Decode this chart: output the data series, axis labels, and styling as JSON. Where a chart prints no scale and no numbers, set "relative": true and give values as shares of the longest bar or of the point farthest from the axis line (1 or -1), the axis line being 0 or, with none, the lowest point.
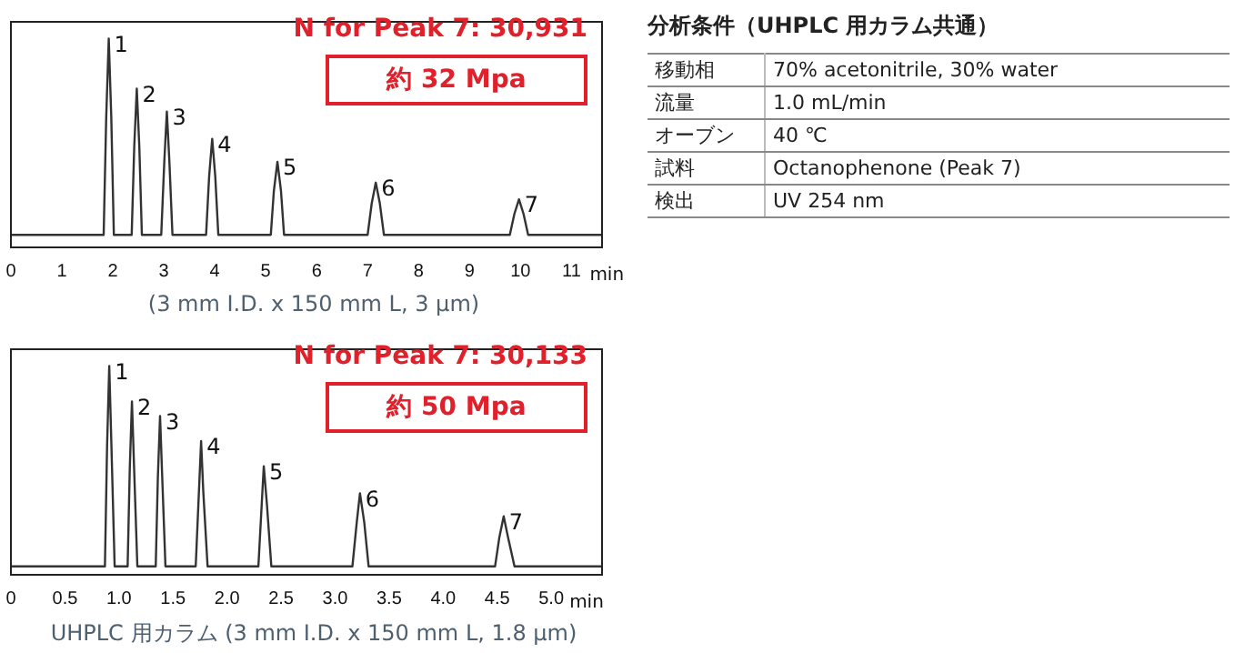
{
  "chart_data": [
    {
      "type": "line",
      "relative": true,
      "xlabel": "min",
      "subtitle": "(3 mm I.D. x 150 mm L, 3 μm)",
      "xlim": [
        0,
        11.6
      ],
      "xticks": [
        0,
        1,
        2,
        3,
        4,
        5,
        6,
        7,
        8,
        9,
        10,
        11
      ],
      "grid": false,
      "legend": false,
      "marker": "none",
      "line_style": "solid",
      "series": [
        {
          "color": "#333333",
          "x": [
            0,
            1.82,
            1.87,
            1.92,
            1.97,
            2.02,
            2.37,
            2.42,
            2.47,
            2.52,
            2.57,
            2.95,
            3.01,
            3.06,
            3.11,
            3.17,
            3.83,
            3.89,
            3.95,
            4.01,
            4.07,
            5.1,
            5.16,
            5.23,
            5.3,
            5.36,
            7.0,
            7.08,
            7.16,
            7.24,
            7.32,
            9.79,
            9.88,
            9.97,
            10.06,
            10.15,
            11.6
          ],
          "values": [
            0.06,
            0.06,
            0.62,
            1,
            0.62,
            0.06,
            0.06,
            0.48,
            0.76,
            0.48,
            0.06,
            0.06,
            0.41,
            0.65,
            0.41,
            0.06,
            0.06,
            0.34,
            0.52,
            0.34,
            0.06,
            0.06,
            0.27,
            0.41,
            0.27,
            0.06,
            0.06,
            0.21,
            0.31,
            0.21,
            0.06,
            0.06,
            0.16,
            0.23,
            0.16,
            0.06,
            0.06
          ]
        }
      ],
      "annotations": [
        "N for Peak 7: 30,931",
        "約 32 Mpa",
        {
          "text": "1",
          "x": 1.92,
          "y": 1
        },
        {
          "text": "2",
          "x": 2.47,
          "y": 0.76
        },
        {
          "text": "3",
          "x": 3.06,
          "y": 0.65
        },
        {
          "text": "4",
          "x": 3.95,
          "y": 0.52
        },
        {
          "text": "5",
          "x": 5.23,
          "y": 0.41
        },
        {
          "text": "6",
          "x": 7.16,
          "y": 0.31
        },
        {
          "text": "7",
          "x": 9.97,
          "y": 0.23
        }
      ]
    },
    {
      "type": "line",
      "relative": true,
      "xlabel": "min",
      "subtitle": "UHPLC 用カラム (3 mm I.D. x 150 mm L, 1.8 μm)",
      "xlim": [
        0,
        5.47
      ],
      "xticks": [
        0,
        0.5,
        {
          "value": 1,
          "label": "1.0"
        },
        1.5,
        {
          "value": 2,
          "label": "2.0"
        },
        2.5,
        {
          "value": 3,
          "label": "3.0"
        },
        3.5,
        {
          "value": 4,
          "label": "4.0"
        },
        4.5,
        {
          "value": 5,
          "label": "5.0"
        }
      ],
      "grid": false,
      "legend": false,
      "marker": "none",
      "line_style": "solid",
      "series": [
        {
          "color": "#333333",
          "x": [
            0,
            0.87,
            0.89,
            0.91,
            0.93,
            0.96,
            1.08,
            1.1,
            1.12,
            1.14,
            1.17,
            1.34,
            1.36,
            1.38,
            1.4,
            1.43,
            1.71,
            1.74,
            1.76,
            1.78,
            1.82,
            2.29,
            2.32,
            2.34,
            2.37,
            2.41,
            3.16,
            3.2,
            3.23,
            3.27,
            3.31,
            4.48,
            4.52,
            4.56,
            4.6,
            4.66,
            5.47
          ],
          "values": [
            0.04,
            0.04,
            0.62,
            1,
            0.62,
            0.04,
            0.04,
            0.51,
            0.83,
            0.51,
            0.04,
            0.04,
            0.47,
            0.76,
            0.47,
            0.04,
            0.04,
            0.4,
            0.64,
            0.4,
            0.04,
            0.04,
            0.33,
            0.52,
            0.33,
            0.04,
            0.04,
            0.25,
            0.39,
            0.25,
            0.04,
            0.04,
            0.18,
            0.28,
            0.18,
            0.04,
            0.04
          ]
        }
      ],
      "annotations": [
        "N for Peak 7: 30,133",
        "約 50 Mpa",
        {
          "text": "1",
          "x": 0.91,
          "y": 1
        },
        {
          "text": "2",
          "x": 1.12,
          "y": 0.83
        },
        {
          "text": "3",
          "x": 1.38,
          "y": 0.76
        },
        {
          "text": "4",
          "x": 1.76,
          "y": 0.64
        },
        {
          "text": "5",
          "x": 2.34,
          "y": 0.52
        },
        {
          "text": "6",
          "x": 3.23,
          "y": 0.39
        },
        {
          "text": "7",
          "x": 4.56,
          "y": 0.28
        }
      ]
    },
    {
      "type": "other",
      "title": "分析条件（UHPLC 用カラム共通）",
      "annotations": [
        "移動相",
        "70% acetonitrile, 30% water",
        "流量",
        "1.0 mL/min",
        "オーブン",
        "40 ℃",
        "試料",
        "Octanophenone (Peak 7)",
        "検出",
        "UV 254 nm"
      ]
    }
  ]
}
